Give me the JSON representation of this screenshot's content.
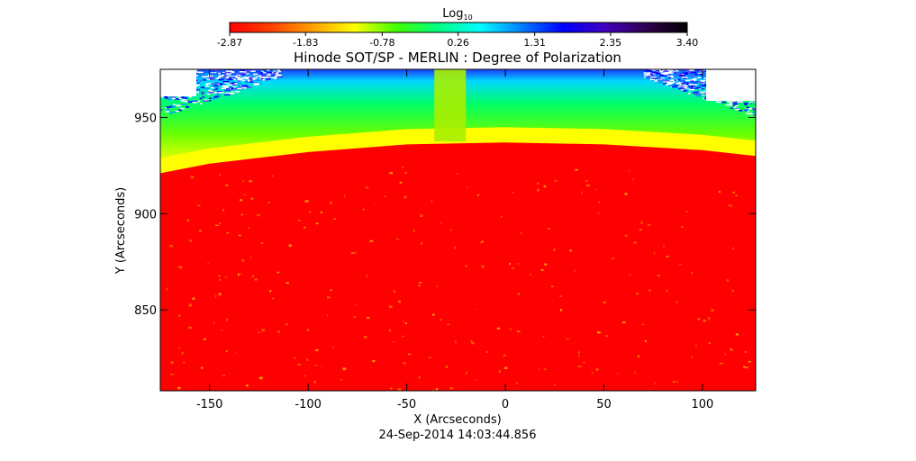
{
  "chart_data": {
    "type": "heatmap",
    "title": "Hinode SOT/SP - MERLIN : Degree of Polarization",
    "xlabel": "X (Arcseconds)",
    "ylabel": "Y (Arcseconds)",
    "timestamp": "24-Sep-2014 14:03:44.856",
    "xlim": [
      -175,
      127
    ],
    "ylim": [
      808,
      975
    ],
    "x_ticks": [
      -150,
      -100,
      -50,
      0,
      50,
      100
    ],
    "y_ticks": [
      850,
      900,
      950
    ],
    "colorbar": {
      "label": "Log",
      "label_subscript": "10",
      "range": [
        -2.87,
        3.4
      ],
      "ticks": [
        "-2.87",
        "-1.83",
        "-0.78",
        "0.26",
        "1.31",
        "2.35",
        "3.40"
      ],
      "colormap": [
        "#ff0000",
        "#ff4000",
        "#ffa000",
        "#ffff00",
        "#40ff00",
        "#00ff80",
        "#00ffff",
        "#0080ff",
        "#0000ff",
        "#4000c0",
        "#300050",
        "#000000"
      ]
    },
    "limb_profile": {
      "x": [
        -175,
        -150,
        -100,
        -50,
        0,
        50,
        100,
        127
      ],
      "y": [
        921,
        926,
        932,
        936,
        937,
        936,
        933,
        930
      ]
    },
    "vertical_band_x": [
      -36,
      -20
    ],
    "regions": [
      {
        "name": "solar disk (below limb)",
        "log10_value": -2.87,
        "color": "#ff0000"
      },
      {
        "name": "limb band",
        "log10_value": -1.2,
        "color": "#ffff00"
      },
      {
        "name": "off-limb corona",
        "log10_value": 0.0,
        "color": "#00ff60"
      },
      {
        "name": "top off-limb noise",
        "log10_value": 1.3,
        "color": "#0000ff"
      }
    ]
  }
}
